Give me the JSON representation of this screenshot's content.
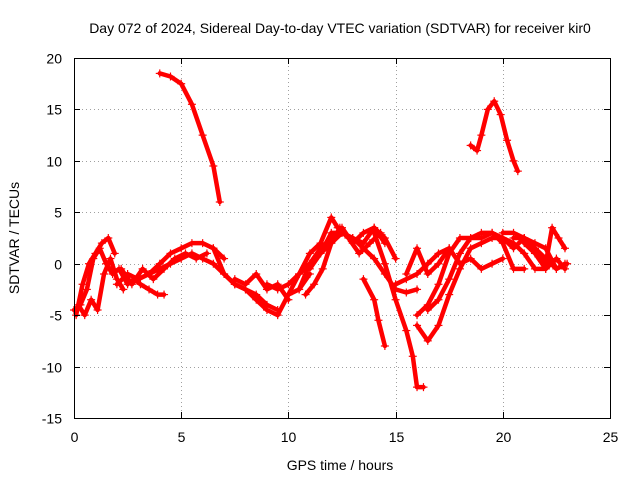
{
  "chart_data": {
    "type": "scatter",
    "title": "Day 072 of 2024, Sidereal Day-to-day VTEC variation (SDTVAR) for receiver kir0",
    "xlabel": "GPS time / hours",
    "ylabel": "SDTVAR / TECUs",
    "xlim": [
      0,
      25
    ],
    "ylim": [
      -15,
      20
    ],
    "xticks": [
      0,
      5,
      10,
      15,
      20,
      25
    ],
    "yticks": [
      -15,
      -10,
      -5,
      0,
      5,
      10,
      15,
      20
    ],
    "grid": true,
    "marker": "+",
    "color": "#ff0000",
    "series": [
      {
        "name": "s1",
        "x": [
          0.0,
          0.3,
          0.6,
          0.9,
          1.2,
          1.5,
          1.8,
          2.1,
          2.5,
          2.8,
          3.1,
          3.5,
          3.9,
          4.2
        ],
        "y": [
          -4.5,
          -4.0,
          -2.5,
          0.5,
          1.5,
          0.0,
          -1.0,
          -0.5,
          -2.0,
          -1.5,
          -2.0,
          -2.5,
          -3.0,
          -3.0
        ]
      },
      {
        "name": "s2",
        "x": [
          0.1,
          0.4,
          0.7,
          1.0,
          1.3,
          1.6,
          1.9
        ],
        "y": [
          -5.0,
          -2.0,
          0.0,
          1.0,
          2.0,
          2.5,
          1.0
        ]
      },
      {
        "name": "s3",
        "x": [
          0.2,
          0.5,
          0.8,
          1.1,
          1.4,
          1.7,
          2.0,
          2.3
        ],
        "y": [
          -4.0,
          -5.0,
          -3.5,
          -4.5,
          -1.0,
          0.5,
          -1.5,
          -2.5
        ]
      },
      {
        "name": "s4",
        "x": [
          2.0,
          2.5,
          3.0,
          3.5,
          4.0,
          4.5,
          5.0,
          5.5,
          6.0,
          6.5,
          7.0
        ],
        "y": [
          -2.0,
          -1.0,
          -1.5,
          -1.0,
          0.0,
          1.0,
          1.5,
          2.0,
          2.0,
          1.5,
          0.5
        ]
      },
      {
        "name": "s5",
        "x": [
          2.2,
          2.7,
          3.2,
          3.7,
          4.2,
          4.7,
          5.2,
          5.7,
          6.2
        ],
        "y": [
          -0.5,
          -2.0,
          -0.5,
          -1.5,
          -0.5,
          0.5,
          1.0,
          0.5,
          1.0
        ]
      },
      {
        "name": "s6",
        "x": [
          3.0,
          3.5,
          4.0,
          4.5,
          5.0,
          5.5,
          6.0,
          6.5,
          7.0,
          7.5,
          8.0,
          8.5,
          9.0,
          9.5
        ],
        "y": [
          -1.5,
          -1.0,
          -0.5,
          0.0,
          0.5,
          1.0,
          0.5,
          0.0,
          -1.0,
          -2.0,
          -2.5,
          -3.0,
          -4.0,
          -4.5
        ]
      },
      {
        "name": "s7",
        "x": [
          6.5,
          7.0,
          7.5,
          8.0,
          8.5,
          9.0,
          9.5,
          10.0,
          10.5,
          11.0
        ],
        "y": [
          1.5,
          -1.0,
          -2.0,
          -2.5,
          -3.5,
          -4.5,
          -5.0,
          -3.0,
          -2.5,
          -1.0
        ]
      },
      {
        "name": "s8",
        "x": [
          7.5,
          8.0,
          8.5,
          9.0,
          9.5,
          10.0
        ],
        "y": [
          -1.5,
          -2.0,
          -1.0,
          -2.5,
          -2.0,
          -3.5
        ]
      },
      {
        "name": "s9",
        "x": [
          4.0,
          4.5,
          5.0,
          5.5,
          6.0,
          6.5,
          6.8
        ],
        "y": [
          18.5,
          18.2,
          17.5,
          15.5,
          12.5,
          9.5,
          6.0
        ]
      },
      {
        "name": "s10",
        "x": [
          9.0,
          9.5,
          10.0,
          10.5,
          11.0,
          11.5,
          12.0,
          12.5,
          13.0,
          13.5,
          14.0,
          14.5,
          15.0,
          15.5,
          16.0
        ],
        "y": [
          -2.0,
          -2.5,
          -2.0,
          -1.0,
          0.0,
          1.0,
          2.0,
          3.0,
          2.5,
          1.5,
          0.5,
          -1.0,
          -2.5,
          -2.8,
          -2.5
        ]
      },
      {
        "name": "s11",
        "x": [
          10.0,
          10.5,
          11.0,
          11.5,
          12.0,
          12.3,
          12.8,
          13.3,
          13.8,
          14.3
        ],
        "y": [
          -3.0,
          -1.0,
          1.0,
          2.0,
          4.5,
          3.5,
          2.5,
          1.0,
          2.0,
          3.0
        ]
      },
      {
        "name": "s12",
        "x": [
          10.5,
          11.0,
          11.5,
          12.0,
          12.5,
          13.0,
          13.5,
          14.0,
          14.5,
          15.0
        ],
        "y": [
          -2.5,
          0.0,
          1.5,
          2.5,
          3.5,
          2.0,
          3.0,
          3.5,
          2.5,
          0.5
        ]
      },
      {
        "name": "s13",
        "x": [
          11.0,
          11.5,
          12.0,
          12.5,
          13.0,
          13.5,
          14.0,
          14.5
        ],
        "y": [
          -0.5,
          1.0,
          3.0,
          3.0,
          2.5,
          2.0,
          3.5,
          2.0
        ]
      },
      {
        "name": "s14",
        "x": [
          10.8,
          11.2,
          11.6,
          12.0,
          12.4
        ],
        "y": [
          -3.0,
          -2.0,
          -0.5,
          2.0,
          3.5
        ]
      },
      {
        "name": "s15",
        "x": [
          13.5,
          14.0,
          14.2,
          14.5
        ],
        "y": [
          -1.5,
          -3.5,
          -5.5,
          -8.0
        ]
      },
      {
        "name": "s16",
        "x": [
          14.0,
          14.5,
          15.0,
          15.5,
          15.8,
          16.0,
          16.3
        ],
        "y": [
          3.0,
          0.0,
          -3.5,
          -6.5,
          -9.0,
          -12.0,
          -12.0
        ]
      },
      {
        "name": "s17",
        "x": [
          15.0,
          15.5,
          16.0,
          16.5,
          17.0,
          17.5
        ],
        "y": [
          -2.0,
          -1.5,
          -1.0,
          0.0,
          1.0,
          1.5
        ]
      },
      {
        "name": "s18",
        "x": [
          15.5,
          16.0,
          16.5,
          17.0,
          17.5,
          18.0,
          18.5,
          19.0,
          19.5,
          20.0
        ],
        "y": [
          -1.0,
          1.5,
          -1.0,
          0.0,
          1.5,
          0.0,
          0.5,
          -0.5,
          0.0,
          0.5
        ]
      },
      {
        "name": "s19",
        "x": [
          16.0,
          16.5,
          17.0,
          17.5,
          18.0,
          18.5,
          19.0,
          19.5,
          20.0,
          20.5,
          21.0,
          21.5,
          22.0
        ],
        "y": [
          -6.0,
          -7.5,
          -6.0,
          -3.0,
          -0.5,
          1.5,
          2.0,
          2.5,
          2.5,
          2.0,
          1.0,
          -0.5,
          -0.5
        ]
      },
      {
        "name": "s20",
        "x": [
          16.5,
          17.0,
          17.5,
          18.0,
          18.5,
          19.0,
          19.5,
          20.0,
          20.5,
          21.0
        ],
        "y": [
          -4.5,
          -3.5,
          -1.5,
          1.0,
          2.5,
          2.5,
          3.0,
          2.0,
          -0.5,
          -0.5
        ]
      },
      {
        "name": "s21",
        "x": [
          16.0,
          16.5,
          17.0,
          17.5,
          18.0,
          18.5,
          19.0,
          19.5,
          20.0,
          20.5,
          21.0,
          21.5,
          22.0,
          22.5,
          23.0
        ],
        "y": [
          -5.0,
          -4.0,
          -2.0,
          1.0,
          2.5,
          2.5,
          3.0,
          3.0,
          2.5,
          1.5,
          2.5,
          1.5,
          0.5,
          -0.5,
          0.0
        ]
      },
      {
        "name": "s22",
        "x": [
          20.0,
          20.5,
          21.0,
          21.5,
          22.0,
          22.5,
          22.9
        ],
        "y": [
          3.0,
          3.0,
          2.5,
          2.0,
          1.5,
          -0.5,
          0.0
        ]
      },
      {
        "name": "s23",
        "x": [
          20.5,
          21.0,
          21.5,
          22.0,
          22.3,
          22.6,
          22.9
        ],
        "y": [
          2.5,
          2.5,
          1.5,
          0.0,
          3.5,
          2.5,
          1.5
        ]
      },
      {
        "name": "s24",
        "x": [
          21.0,
          21.5,
          22.0,
          22.5,
          22.9
        ],
        "y": [
          2.0,
          1.0,
          -0.5,
          0.5,
          -0.5
        ]
      },
      {
        "name": "s25",
        "x": [
          18.5,
          18.8,
          19.0,
          19.3,
          19.6,
          19.9,
          20.2,
          20.5,
          20.7
        ],
        "y": [
          11.5,
          11.0,
          12.5,
          15.0,
          15.8,
          14.5,
          12.0,
          10.0,
          9.0
        ]
      }
    ]
  }
}
